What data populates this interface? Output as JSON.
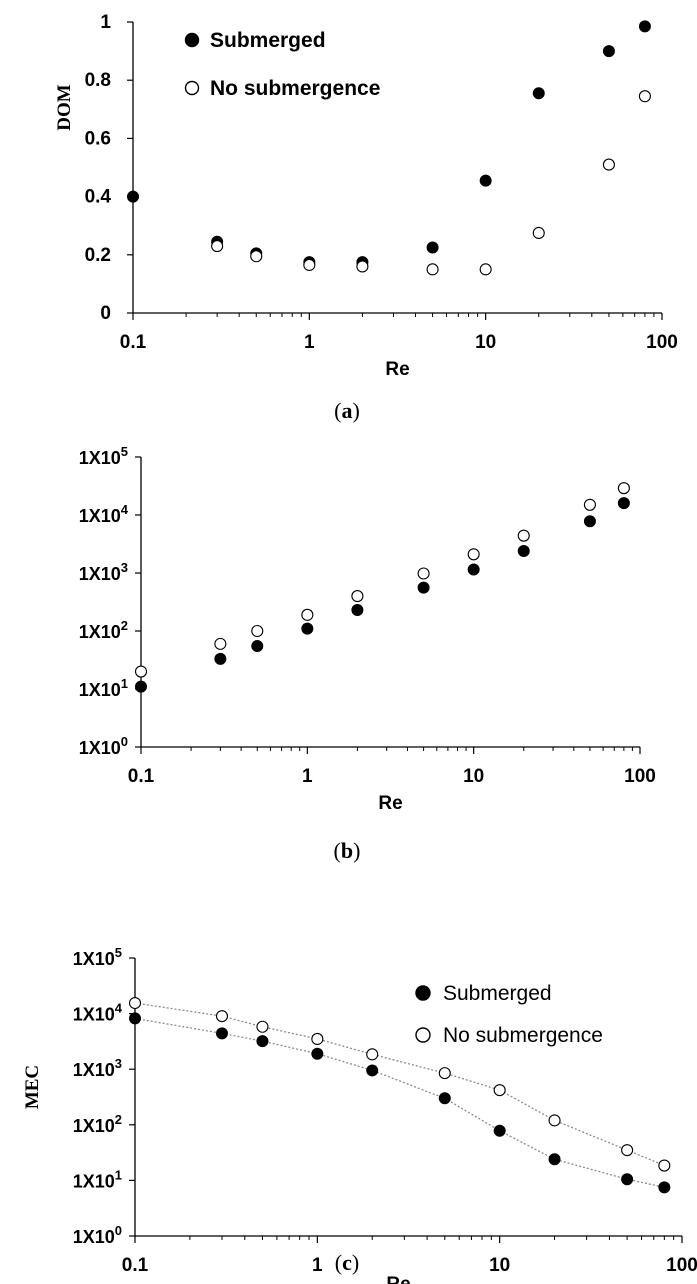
{
  "chart_data": [
    {
      "type": "scatter",
      "panel_label": "a",
      "xlabel": "Re",
      "ylabel": "DOM",
      "xscale": "log",
      "xlim": [
        0.1,
        100
      ],
      "ylim": [
        0,
        1
      ],
      "xticks": [
        "0.1",
        "1",
        "10",
        "100"
      ],
      "yticks": [
        "0",
        "0.2",
        "0.4",
        "0.6",
        "0.8",
        "1"
      ],
      "legend_position": "top-left",
      "series": [
        {
          "name": "Submerged",
          "marker": "filled",
          "x": [
            0.1,
            0.3,
            0.5,
            1,
            2,
            5,
            10,
            20,
            50,
            80
          ],
          "y": [
            0.4,
            0.245,
            0.205,
            0.175,
            0.175,
            0.225,
            0.455,
            0.755,
            0.9,
            0.985
          ]
        },
        {
          "name": "No submergence",
          "marker": "open",
          "x": [
            0.3,
            0.5,
            1,
            2,
            5,
            10,
            20,
            50,
            80
          ],
          "y": [
            0.23,
            0.195,
            0.165,
            0.16,
            0.15,
            0.15,
            0.275,
            0.51,
            0.745
          ]
        }
      ]
    },
    {
      "type": "scatter",
      "panel_label": "b",
      "xlabel": "Re",
      "ylabel": "",
      "xscale": "log",
      "yscale": "log",
      "xlim": [
        0.1,
        100
      ],
      "ylim": [
        1,
        100000
      ],
      "xticks": [
        "0.1",
        "1",
        "10",
        "100"
      ],
      "ytick_labels": [
        {
          "base": "1X10",
          "exp": "0"
        },
        {
          "base": "1X10",
          "exp": "1"
        },
        {
          "base": "1X10",
          "exp": "2"
        },
        {
          "base": "1X10",
          "exp": "3"
        },
        {
          "base": "1X10",
          "exp": "4"
        },
        {
          "base": "1X10",
          "exp": "5"
        }
      ],
      "series": [
        {
          "name": "",
          "marker": "filled",
          "x": [
            0.1,
            0.3,
            0.5,
            1,
            2,
            5,
            10,
            20,
            50,
            80
          ],
          "y": [
            11,
            33,
            55,
            110,
            230,
            560,
            1150,
            2400,
            7800,
            16000
          ]
        },
        {
          "name": "",
          "marker": "open",
          "x": [
            0.1,
            0.3,
            0.5,
            1,
            2,
            5,
            10,
            20,
            50,
            80
          ],
          "y": [
            20,
            60,
            100,
            190,
            400,
            980,
            2100,
            4400,
            15000,
            29000
          ]
        }
      ]
    },
    {
      "type": "line",
      "panel_label": "c",
      "xlabel": "Re",
      "ylabel": "MEC",
      "xscale": "log",
      "yscale": "log",
      "xlim": [
        0.1,
        100
      ],
      "ylim": [
        1,
        100000
      ],
      "xticks": [
        "0.1",
        "1",
        "10",
        "100"
      ],
      "ytick_labels": [
        {
          "base": "1X10",
          "exp": "0"
        },
        {
          "base": "1X10",
          "exp": "1"
        },
        {
          "base": "1X10",
          "exp": "2"
        },
        {
          "base": "1X10",
          "exp": "3"
        },
        {
          "base": "1X10",
          "exp": "4"
        },
        {
          "base": "1X10",
          "exp": "5"
        }
      ],
      "legend_position": "top-right",
      "series": [
        {
          "name": "Submerged",
          "marker": "filled",
          "line": "dotted",
          "x": [
            0.1,
            0.3,
            0.5,
            1,
            2,
            5,
            10,
            20,
            50,
            80
          ],
          "y": [
            8200,
            4400,
            3200,
            1900,
            950,
            300,
            78,
            24,
            10.5,
            7.5
          ]
        },
        {
          "name": "No submergence",
          "marker": "open",
          "line": "dotted",
          "x": [
            0.1,
            0.3,
            0.5,
            1,
            2,
            5,
            10,
            20,
            50,
            80
          ],
          "y": [
            15500,
            9000,
            5800,
            3500,
            1850,
            850,
            420,
            120,
            35,
            18.5
          ]
        }
      ]
    }
  ]
}
